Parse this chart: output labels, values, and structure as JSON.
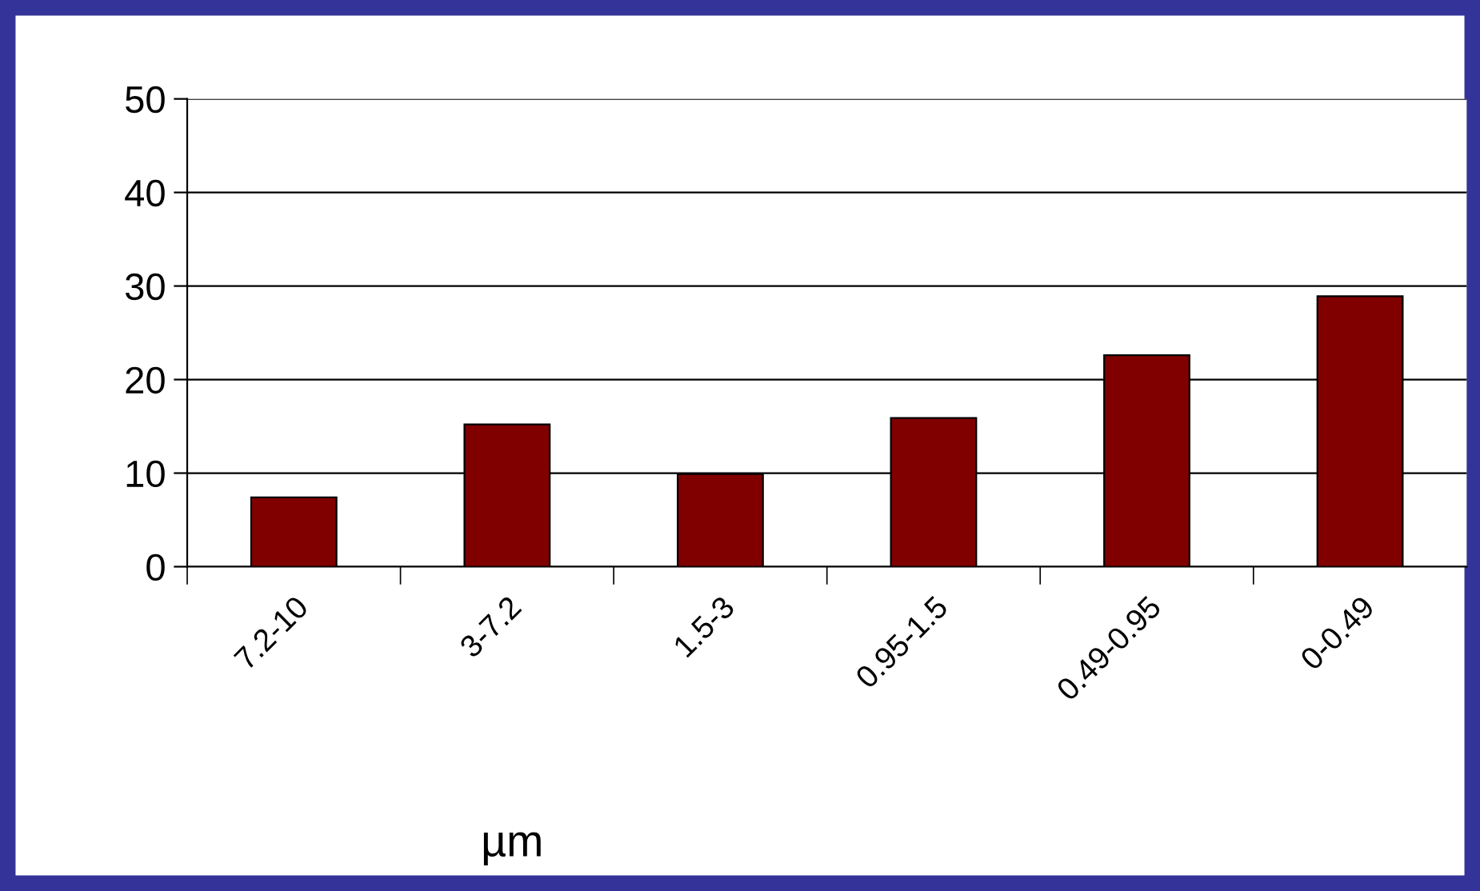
{
  "chart_data": {
    "type": "bar",
    "xlabel": "µm",
    "categories": [
      "7.2-10",
      "3-7.2",
      "1.5-3",
      "0.95-1.5",
      "0.49-0.95",
      "0-0.49"
    ],
    "values": [
      7.4,
      15.2,
      9.9,
      15.9,
      22.6,
      28.9
    ],
    "color": "#800000",
    "ylim": [
      0,
      50
    ],
    "yticks": [
      0,
      10,
      20,
      30,
      40,
      50
    ],
    "grid": "y",
    "legend": false
  }
}
